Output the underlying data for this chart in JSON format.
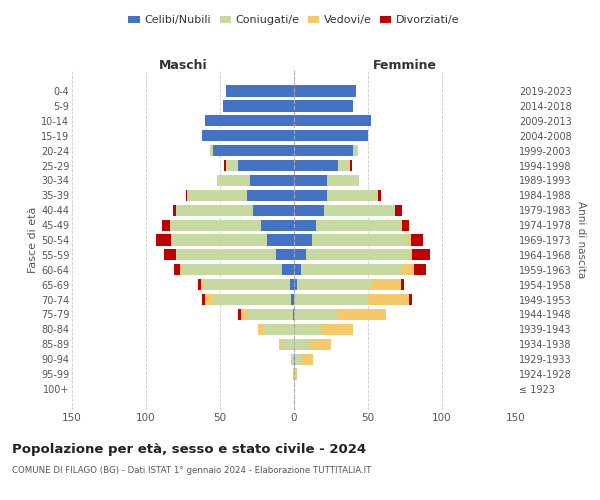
{
  "age_groups": [
    "100+",
    "95-99",
    "90-94",
    "85-89",
    "80-84",
    "75-79",
    "70-74",
    "65-69",
    "60-64",
    "55-59",
    "50-54",
    "45-49",
    "40-44",
    "35-39",
    "30-34",
    "25-29",
    "20-24",
    "15-19",
    "10-14",
    "5-9",
    "0-4"
  ],
  "birth_years": [
    "≤ 1923",
    "1924-1928",
    "1929-1933",
    "1934-1938",
    "1939-1943",
    "1944-1948",
    "1949-1953",
    "1954-1958",
    "1959-1963",
    "1964-1968",
    "1969-1973",
    "1974-1978",
    "1979-1983",
    "1984-1988",
    "1989-1993",
    "1994-1998",
    "1999-2003",
    "2004-2008",
    "2009-2013",
    "2014-2018",
    "2019-2023"
  ],
  "maschi": {
    "celibi": [
      0,
      0,
      0,
      0,
      0,
      1,
      2,
      3,
      8,
      12,
      18,
      22,
      28,
      32,
      30,
      38,
      55,
      62,
      60,
      48,
      46
    ],
    "coniugati": [
      0,
      1,
      2,
      8,
      20,
      30,
      52,
      58,
      68,
      68,
      65,
      62,
      52,
      40,
      22,
      8,
      2,
      0,
      0,
      0,
      0
    ],
    "vedovi": [
      0,
      0,
      0,
      2,
      4,
      5,
      6,
      2,
      1,
      0,
      0,
      0,
      0,
      0,
      0,
      0,
      0,
      0,
      0,
      0,
      0
    ],
    "divorziati": [
      0,
      0,
      0,
      0,
      0,
      2,
      2,
      2,
      4,
      8,
      10,
      5,
      2,
      1,
      0,
      1,
      0,
      0,
      0,
      0,
      0
    ]
  },
  "femmine": {
    "nubili": [
      0,
      0,
      1,
      0,
      0,
      0,
      0,
      2,
      5,
      8,
      12,
      15,
      20,
      22,
      22,
      30,
      40,
      50,
      52,
      40,
      42
    ],
    "coniugate": [
      0,
      0,
      4,
      10,
      18,
      30,
      50,
      50,
      68,
      70,
      65,
      58,
      48,
      35,
      22,
      8,
      3,
      0,
      0,
      0,
      0
    ],
    "vedove": [
      0,
      2,
      8,
      15,
      22,
      32,
      28,
      20,
      8,
      2,
      2,
      0,
      0,
      0,
      0,
      0,
      0,
      0,
      0,
      0,
      0
    ],
    "divorziate": [
      0,
      0,
      0,
      0,
      0,
      0,
      2,
      2,
      8,
      12,
      8,
      5,
      5,
      2,
      0,
      1,
      0,
      0,
      0,
      0,
      0
    ]
  },
  "colors": {
    "celibi": "#4472c4",
    "coniugati": "#c5d9a0",
    "vedovi": "#f5c96a",
    "divorziati": "#c00000"
  },
  "title": "Popolazione per età, sesso e stato civile - 2024",
  "subtitle": "COMUNE DI FILAGO (BG) - Dati ISTAT 1° gennaio 2024 - Elaborazione TUTTITALIA.IT",
  "xlabel_maschi": "Maschi",
  "xlabel_femmine": "Femmine",
  "ylabel": "Fasce di età",
  "ylabel_right": "Anni di nascita",
  "legend_labels": [
    "Celibi/Nubili",
    "Coniugati/e",
    "Vedovi/e",
    "Divorziati/e"
  ],
  "xlim": 150,
  "bg_color": "#ffffff",
  "grid_color": "#cccccc"
}
